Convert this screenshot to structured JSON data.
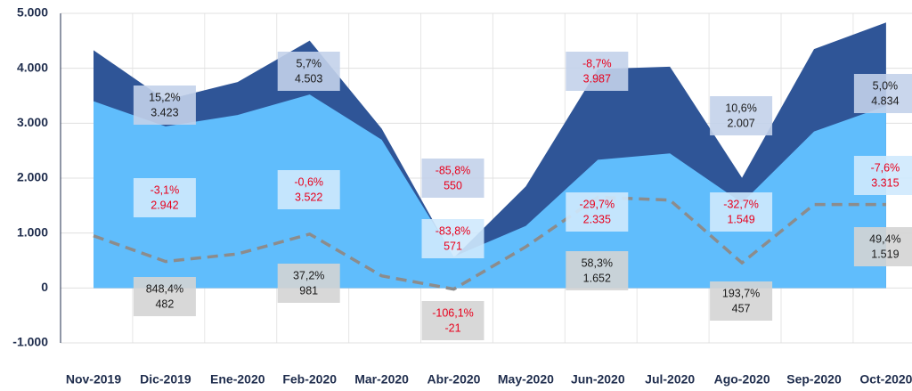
{
  "chart_data": {
    "type": "area",
    "categories": [
      "Nov-2019",
      "Dic-2019",
      "Ene-2020",
      "Feb-2020",
      "Mar-2020",
      "Abr-2020",
      "May-2020",
      "Jun-2020",
      "Jul-2020",
      "Ago-2020",
      "Sep-2020",
      "Oct-2020"
    ],
    "ylim": [
      -1000,
      5000
    ],
    "yticks": [
      {
        "value": -1000,
        "label": "-1.000"
      },
      0,
      {
        "value": 1000,
        "label": "1.000"
      },
      {
        "value": 2000,
        "label": "2.000"
      },
      {
        "value": 3000,
        "label": "3.000"
      },
      {
        "value": 4000,
        "label": "4.000"
      },
      {
        "value": 5000,
        "label": "5.000"
      }
    ],
    "grid": true,
    "series": [
      {
        "color": "#2f5597",
        "style": "area",
        "values": [
          4330,
          3423,
          3750,
          4503,
          2900,
          550,
          1850,
          3987,
          4030,
          2007,
          4350,
          4834
        ],
        "value_labels": [
          null,
          "3.423",
          null,
          "4.503",
          null,
          "550",
          null,
          "3.987",
          null,
          "2.007",
          null,
          "4.834"
        ],
        "change_labels": [
          null,
          "15,2%",
          null,
          "5,7%",
          null,
          "-85,8%",
          null,
          "-8,7%",
          null,
          "10,6%",
          null,
          "5,0%"
        ]
      },
      {
        "color": "#60bdfc",
        "style": "area",
        "values": [
          3400,
          2942,
          3150,
          3522,
          2700,
          571,
          1130,
          2335,
          2450,
          1549,
          2850,
          3315
        ],
        "value_labels": [
          null,
          "2.942",
          null,
          "3.522",
          null,
          "571",
          null,
          "2.335",
          null,
          "1.549",
          null,
          "3.315"
        ],
        "change_labels": [
          null,
          "-3,1%",
          null,
          "-0,6%",
          null,
          "-83,8%",
          null,
          "-29,7%",
          null,
          "-32,7%",
          null,
          "-7,6%"
        ]
      },
      {
        "color": "#8c8c8c",
        "style": "dashed",
        "values": [
          950,
          482,
          620,
          981,
          220,
          -21,
          750,
          1652,
          1600,
          457,
          1519,
          1519
        ],
        "value_labels": [
          null,
          "482",
          null,
          "981",
          null,
          null,
          null,
          "1.652",
          null,
          "457",
          null,
          "1.519"
        ],
        "change_labels": [
          null,
          "848,4%",
          null,
          "37,2%",
          null,
          "-106,1%",
          null,
          "58,3%",
          null,
          "193,7%",
          null,
          "49,4%"
        ]
      }
    ]
  }
}
